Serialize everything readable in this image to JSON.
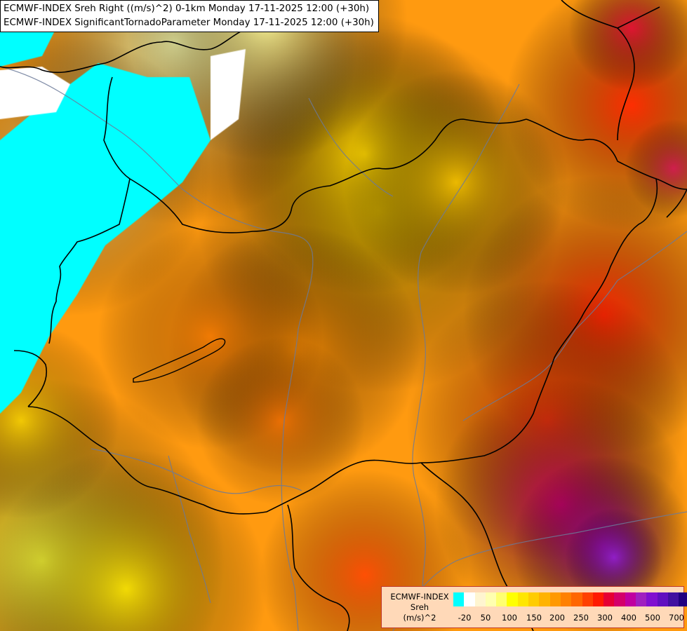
{
  "header": {
    "line1": "ECMWF-INDEX Sreh Right ((m/s)^2) 0-1km Monday 17-11-2025 12:00 (+30h)",
    "line2": "ECMWF-INDEX SignificantTornadoParameter Monday 17-11-2025 12:00 (+30h)"
  },
  "legend": {
    "line1": "ECMWF-INDEX",
    "line2": "Sreh",
    "line3": "(m/s)^2",
    "colors": [
      "#00ffff",
      "#ffffff",
      "#fff5d0",
      "#ffffb0",
      "#ffff70",
      "#ffff00",
      "#ffe600",
      "#ffcc00",
      "#ffb300",
      "#ff9900",
      "#ff8000",
      "#ff6600",
      "#ff4000",
      "#ff1a00",
      "#e60033",
      "#d4006a",
      "#c000a0",
      "#a020c0",
      "#8010d0",
      "#6010c0",
      "#4010a0",
      "#200080"
    ],
    "ticks": [
      "-20",
      "50",
      "100",
      "150",
      "200",
      "250",
      "300",
      "400",
      "500",
      "700"
    ]
  },
  "colors": {
    "map_base": "#ff9a10",
    "border_line": "#000000",
    "river_line": "#6c7a99"
  }
}
